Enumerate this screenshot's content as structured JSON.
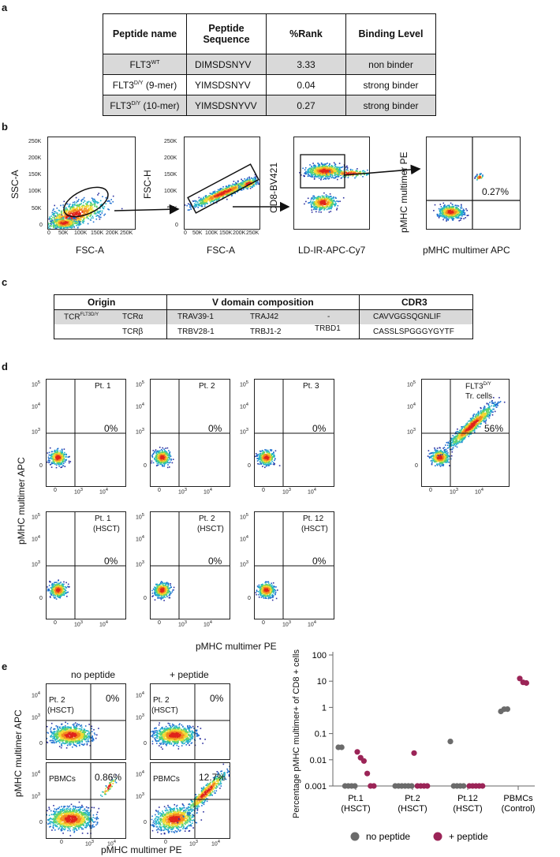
{
  "panels": {
    "a": "a",
    "b": "b",
    "c": "c",
    "d": "d",
    "e": "e"
  },
  "table_a": {
    "headers": [
      "Peptide name",
      "Peptide Sequence",
      "%Rank",
      "Binding Level"
    ],
    "rows": [
      {
        "name": "FLT3",
        "name_sup": "WT",
        "name_suffix": "",
        "sequence": "DIMSDSNYV",
        "rank": "3.33",
        "level": "non binder"
      },
      {
        "name": "FLT3",
        "name_sup": "D/Y",
        "name_suffix": " (9-mer)",
        "sequence": "YIMSDSNYV",
        "rank": "0.04",
        "level": "strong binder"
      },
      {
        "name": "FLT3",
        "name_sup": "D/Y",
        "name_suffix": " (10-mer)",
        "sequence": "YIMSDSNYVV",
        "rank": "0.27",
        "level": "strong binder"
      }
    ]
  },
  "panel_b": {
    "plot1": {
      "ylabel": "SSC-A",
      "xlabel": "FSC-A",
      "yticks": [
        "250K",
        "200K",
        "150K",
        "100K",
        "50K",
        "0"
      ],
      "xticks": [
        "0",
        "50K",
        "100K",
        "150K",
        "200K",
        "250K"
      ]
    },
    "plot2": {
      "ylabel": "FSC-H",
      "xlabel": "FSC-A",
      "yticks": [
        "250K",
        "200K",
        "150K",
        "100K",
        "50K",
        "0"
      ],
      "xticks": [
        "0",
        "50K",
        "100K",
        "150K",
        "200K",
        "250K"
      ]
    },
    "plot3": {
      "ylabel": "CD8-BV421",
      "xlabel": "LD-IR-APC-Cy7"
    },
    "plot4": {
      "ylabel": "pMHC multimer PE",
      "xlabel": "pMHC multimer APC",
      "percent": "0.27%"
    }
  },
  "table_c": {
    "headers": {
      "origin": "Origin",
      "vdomain": "V domain composition",
      "cdr3": "CDR3"
    },
    "tcr_name": "TCR",
    "tcr_sup": "FLT3D/Y",
    "alpha": {
      "chain": "TCRα",
      "v": "TRAV39-1",
      "j": "TRAJ42",
      "d": "-",
      "cdr3": "CAVVGGSQGNLIF"
    },
    "beta": {
      "chain": "TCRβ",
      "v": "TRBV28-1",
      "j": "TRBJ1-2",
      "d": "TRBD1",
      "cdr3": "CASSLSPGGGYGYTF"
    }
  },
  "panel_d": {
    "ylabel": "pMHC multimer APC",
    "xlabel": "pMHC multimer PE",
    "plots": [
      {
        "label": "Pt. 1",
        "label2": "",
        "percent": "0%"
      },
      {
        "label": "Pt. 2",
        "label2": "",
        "percent": "0%"
      },
      {
        "label": "Pt. 3",
        "label2": "",
        "percent": "0%"
      },
      {
        "label": "FLT3",
        "label_sup": "D/Y",
        "label2": "Tr. cells",
        "percent": "56%"
      },
      {
        "label": "Pt. 1",
        "label2": "(HSCT)",
        "percent": "0%"
      },
      {
        "label": "Pt. 2",
        "label2": "(HSCT)",
        "percent": "0%"
      },
      {
        "label": "Pt. 12",
        "label2": "(HSCT)",
        "percent": "0%"
      }
    ]
  },
  "panel_e": {
    "col_titles": [
      "no peptide",
      "+ peptide"
    ],
    "ylabel": "pMHC multimer APC",
    "xlabel": "pMHC multimer PE",
    "plots": [
      {
        "label": "Pt. 2",
        "label2": "(HSCT)",
        "percent": "0%"
      },
      {
        "label": "Pt. 2",
        "label2": "(HSCT)",
        "percent": "0%"
      },
      {
        "label": "PBMCs",
        "label2": "",
        "percent": "0.86%"
      },
      {
        "label": "PBMCs",
        "label2": "",
        "percent": "12.7%"
      }
    ]
  },
  "chart_data": {
    "type": "scatter",
    "ylabel": "Percentage pMHC multimer+ of CD8 + cells",
    "yscale": "log",
    "ylim": [
      0.001,
      100
    ],
    "yticks": [
      "100",
      "10",
      "1",
      "0.1",
      "0.01",
      "0.001"
    ],
    "categories": [
      "Pt.1\n(HSCT)",
      "Pt.2\n(HSCT)",
      "Pt.12\n(HSCT)",
      "PBMCs\n(Control)"
    ],
    "series": [
      {
        "name": "no peptide",
        "color": "#6b6b6b",
        "points": [
          {
            "cat": 0,
            "y": 0.03
          },
          {
            "cat": 0,
            "y": 0.03
          },
          {
            "cat": 0,
            "y": 0.001
          },
          {
            "cat": 0,
            "y": 0.001
          },
          {
            "cat": 0,
            "y": 0.001
          },
          {
            "cat": 0,
            "y": 0.001
          },
          {
            "cat": 1,
            "y": 0.001
          },
          {
            "cat": 1,
            "y": 0.001
          },
          {
            "cat": 1,
            "y": 0.001
          },
          {
            "cat": 1,
            "y": 0.001
          },
          {
            "cat": 1,
            "y": 0.001
          },
          {
            "cat": 1,
            "y": 0.001
          },
          {
            "cat": 2,
            "y": 0.05
          },
          {
            "cat": 2,
            "y": 0.001
          },
          {
            "cat": 2,
            "y": 0.001
          },
          {
            "cat": 2,
            "y": 0.001
          },
          {
            "cat": 2,
            "y": 0.001
          },
          {
            "cat": 3,
            "y": 0.7
          },
          {
            "cat": 3,
            "y": 0.85
          },
          {
            "cat": 3,
            "y": 0.86
          }
        ]
      },
      {
        "name": "+ peptide",
        "color": "#9b2457",
        "points": [
          {
            "cat": 0,
            "y": 0.02
          },
          {
            "cat": 0,
            "y": 0.012
          },
          {
            "cat": 0,
            "y": 0.009
          },
          {
            "cat": 0,
            "y": 0.003
          },
          {
            "cat": 0,
            "y": 0.001
          },
          {
            "cat": 0,
            "y": 0.001
          },
          {
            "cat": 1,
            "y": 0.018
          },
          {
            "cat": 1,
            "y": 0.001
          },
          {
            "cat": 1,
            "y": 0.001
          },
          {
            "cat": 1,
            "y": 0.001
          },
          {
            "cat": 1,
            "y": 0.001
          },
          {
            "cat": 2,
            "y": 0.001
          },
          {
            "cat": 2,
            "y": 0.001
          },
          {
            "cat": 2,
            "y": 0.001
          },
          {
            "cat": 2,
            "y": 0.001
          },
          {
            "cat": 2,
            "y": 0.001
          },
          {
            "cat": 3,
            "y": 12.7
          },
          {
            "cat": 3,
            "y": 9
          },
          {
            "cat": 3,
            "y": 8.5
          }
        ]
      }
    ],
    "legend": [
      "no peptide",
      "+ peptide"
    ]
  }
}
